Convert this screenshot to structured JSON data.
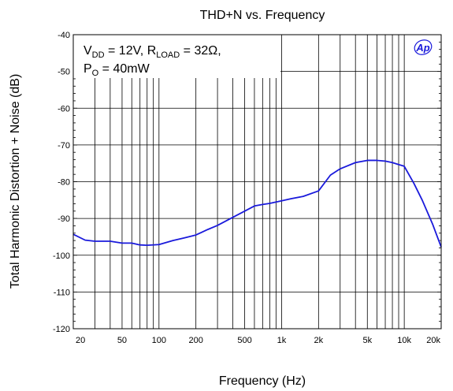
{
  "chart_data": {
    "type": "line",
    "title": "THD+N vs. Frequency",
    "xlabel": "Frequency (Hz)",
    "ylabel": "Total Harmonic Distortion + Noise (dB)",
    "x_scale": "log",
    "xlim": [
      20,
      20000
    ],
    "ylim": [
      -120,
      -40
    ],
    "grid": true,
    "x_ticks": [
      {
        "value": 20,
        "label": "20"
      },
      {
        "value": 50,
        "label": "50"
      },
      {
        "value": 100,
        "label": "100"
      },
      {
        "value": 200,
        "label": "200"
      },
      {
        "value": 500,
        "label": "500"
      },
      {
        "value": 1000,
        "label": "1k"
      },
      {
        "value": 2000,
        "label": "2k"
      },
      {
        "value": 5000,
        "label": "5k"
      },
      {
        "value": 10000,
        "label": "10k"
      },
      {
        "value": 20000,
        "label": "20k"
      }
    ],
    "y_ticks": [
      -40,
      -50,
      -60,
      -70,
      -80,
      -90,
      -100,
      -110,
      -120
    ],
    "annotation": {
      "line1": {
        "v": "V",
        "v_sub": "DD",
        "v_eq": " = 12V, R",
        "r_sub": "LOAD",
        "r_eq": " = 32Ω,"
      },
      "line2": {
        "p": "P",
        "p_sub": "O",
        "p_eq": " = 40mW"
      }
    },
    "logo": "Ap",
    "series": [
      {
        "color": "#1a1adb",
        "x": [
          20,
          25,
          30,
          40,
          50,
          60,
          70,
          80,
          100,
          130,
          160,
          200,
          250,
          300,
          400,
          500,
          600,
          700,
          800,
          1000,
          1200,
          1500,
          2000,
          2500,
          3000,
          4000,
          5000,
          6000,
          7000,
          8000,
          10000,
          12000,
          14000,
          17000,
          20000
        ],
        "y": [
          -94.3,
          -95.9,
          -96.2,
          -96.2,
          -96.7,
          -96.7,
          -97.2,
          -97.3,
          -97.1,
          -96.0,
          -95.3,
          -94.5,
          -93.0,
          -91.9,
          -89.7,
          -88.0,
          -86.6,
          -86.2,
          -85.9,
          -85.2,
          -84.6,
          -84.0,
          -82.5,
          -78.2,
          -76.5,
          -74.8,
          -74.2,
          -74.2,
          -74.4,
          -74.8,
          -75.8,
          -80.5,
          -85.0,
          -91.5,
          -97.8
        ]
      }
    ]
  }
}
